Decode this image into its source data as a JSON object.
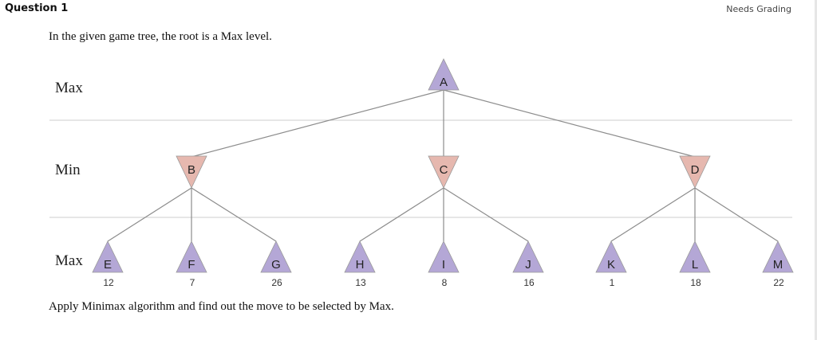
{
  "question": {
    "title": "Question 1",
    "status": "Needs Grading"
  },
  "prompt": {
    "intro": "In the given game tree, the root is a Max level.",
    "outro": "Apply Minimax algorithm and find out the move to be selected by Max."
  },
  "levels": [
    "Max",
    "Min",
    "Max"
  ],
  "colors": {
    "max_node": "#b4a7d6",
    "min_node": "#e6b8af",
    "edge": "#8c8c8c",
    "separator": "#cccccc"
  },
  "tree": {
    "root": {
      "label": "A",
      "type": "max"
    },
    "min_nodes": [
      {
        "label": "B",
        "type": "min",
        "children": [
          "E",
          "F",
          "G"
        ]
      },
      {
        "label": "C",
        "type": "min",
        "children": [
          "H",
          "I",
          "J"
        ]
      },
      {
        "label": "D",
        "type": "min",
        "children": [
          "K",
          "L",
          "M"
        ]
      }
    ],
    "leaves": [
      {
        "label": "E",
        "value": "12"
      },
      {
        "label": "F",
        "value": "7"
      },
      {
        "label": "G",
        "value": "26"
      },
      {
        "label": "H",
        "value": "13"
      },
      {
        "label": "I",
        "value": "8"
      },
      {
        "label": "J",
        "value": "16"
      },
      {
        "label": "K",
        "value": "1"
      },
      {
        "label": "L",
        "value": "18"
      },
      {
        "label": "M",
        "value": "22"
      }
    ]
  }
}
